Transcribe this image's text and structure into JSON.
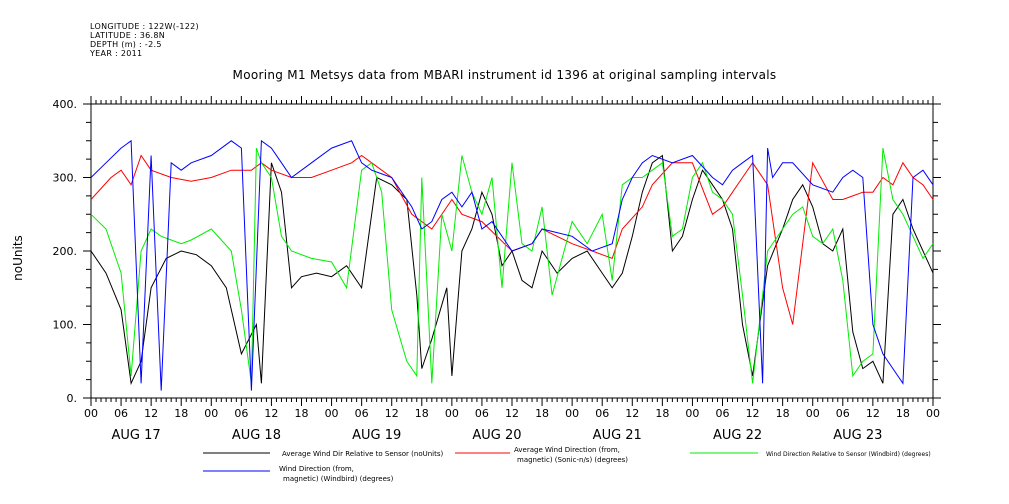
{
  "header": {
    "line1": "LONGITUDE : 122W(-122)",
    "line2": "LATITUDE : 36.8N",
    "line3": "DEPTH (m) : -2.5",
    "line4": "YEAR : 2011"
  },
  "chart_data": {
    "type": "line",
    "title": "Mooring M1 Metsys data from MBARI instrument id 1396 at original sampling intervals",
    "ylabel": "noUnits",
    "xlabel": "",
    "ylim": [
      0,
      400
    ],
    "y_ticks": [
      "0.",
      "100.",
      "200.",
      "300.",
      "400."
    ],
    "x_range_hours": [
      0,
      168
    ],
    "x_tick_labels": [
      "00",
      "06",
      "12",
      "18",
      "00",
      "06",
      "12",
      "18",
      "00",
      "06",
      "12",
      "18",
      "00",
      "06",
      "12",
      "18",
      "00",
      "06",
      "12",
      "18",
      "00",
      "06",
      "12",
      "18",
      "00",
      "06",
      "12",
      "18",
      "00"
    ],
    "date_labels": [
      "AUG 17",
      "AUG 18",
      "AUG 19",
      "AUG 20",
      "AUG 21",
      "AUG 22",
      "AUG 23"
    ],
    "grid": false,
    "legend_position": "bottom",
    "series": [
      {
        "name": "Average Wind Dir Relative to Sensor (noUnits)",
        "color": "#000000",
        "x": [
          0,
          3,
          6,
          8,
          10,
          12,
          15,
          18,
          21,
          24,
          27,
          30,
          33,
          34,
          36,
          38,
          40,
          42,
          45,
          48,
          51,
          54,
          57,
          60,
          63,
          65,
          66,
          68,
          71,
          72,
          74,
          76,
          78,
          80,
          82,
          84,
          86,
          88,
          90,
          93,
          96,
          99,
          102,
          104,
          106,
          108,
          110,
          112,
          114,
          116,
          118,
          120,
          122,
          124,
          126,
          128,
          130,
          132,
          135,
          138,
          139,
          140,
          142,
          144,
          146,
          148,
          150,
          152,
          154,
          156,
          158,
          160,
          162,
          164,
          166,
          168
        ],
        "values": [
          200,
          170,
          120,
          20,
          50,
          150,
          190,
          200,
          195,
          180,
          150,
          60,
          100,
          20,
          320,
          280,
          150,
          165,
          170,
          165,
          180,
          150,
          300,
          290,
          270,
          140,
          40,
          80,
          150,
          30,
          200,
          230,
          280,
          250,
          180,
          200,
          160,
          150,
          200,
          170,
          190,
          200,
          170,
          150,
          170,
          220,
          280,
          320,
          330,
          200,
          220,
          270,
          310,
          290,
          270,
          230,
          100,
          30,
          180,
          230,
          250,
          270,
          290,
          260,
          210,
          200,
          230,
          90,
          40,
          50,
          20,
          250,
          270,
          230,
          200,
          170
        ]
      },
      {
        "name": "Average Wind Direction (from, magnetic) (Sonic-n/s) (degrees)",
        "color": "#ff0000",
        "x": [
          0,
          4,
          6,
          8,
          10,
          12,
          16,
          20,
          24,
          28,
          32,
          34,
          36,
          40,
          44,
          48,
          52,
          54,
          56,
          60,
          64,
          66,
          68,
          72,
          74,
          78,
          84,
          88,
          90,
          96,
          100,
          104,
          106,
          110,
          112,
          116,
          120,
          124,
          126,
          128,
          130,
          132,
          135,
          138,
          140,
          144,
          148,
          150,
          152,
          154,
          156,
          158,
          160,
          162,
          164,
          166,
          168
        ],
        "values": [
          270,
          300,
          310,
          290,
          330,
          310,
          300,
          295,
          300,
          310,
          310,
          320,
          310,
          300,
          300,
          310,
          320,
          330,
          320,
          300,
          250,
          240,
          230,
          270,
          250,
          240,
          200,
          210,
          230,
          210,
          200,
          190,
          230,
          260,
          290,
          320,
          320,
          250,
          260,
          280,
          300,
          320,
          290,
          150,
          100,
          320,
          270,
          270,
          275,
          280,
          280,
          300,
          290,
          320,
          300,
          290,
          270
        ]
      },
      {
        "name": "Wind Direction Relative to Sensor (Windbird) (degrees)",
        "color": "#00ee00",
        "x": [
          0,
          3,
          6,
          8,
          10,
          12,
          14,
          16,
          18,
          20,
          24,
          28,
          30,
          32,
          33,
          34,
          36,
          38,
          40,
          44,
          48,
          51,
          54,
          56,
          58,
          60,
          63,
          65,
          66,
          68,
          70,
          72,
          74,
          76,
          78,
          80,
          82,
          84,
          86,
          88,
          90,
          92,
          96,
          99,
          102,
          104,
          106,
          108,
          110,
          112,
          114,
          116,
          118,
          120,
          122,
          124,
          126,
          128,
          130,
          132,
          135,
          138,
          140,
          142,
          144,
          146,
          148,
          150,
          152,
          154,
          156,
          158,
          160,
          162,
          164,
          166,
          168
        ],
        "values": [
          250,
          230,
          170,
          30,
          200,
          230,
          220,
          215,
          210,
          215,
          230,
          200,
          120,
          20,
          340,
          320,
          300,
          220,
          200,
          190,
          185,
          150,
          310,
          320,
          280,
          120,
          50,
          30,
          300,
          20,
          250,
          200,
          330,
          280,
          250,
          300,
          150,
          320,
          210,
          200,
          260,
          140,
          240,
          210,
          250,
          160,
          290,
          300,
          300,
          310,
          320,
          220,
          230,
          300,
          320,
          280,
          270,
          250,
          140,
          20,
          200,
          230,
          250,
          260,
          220,
          210,
          230,
          160,
          30,
          50,
          60,
          340,
          270,
          250,
          220,
          190,
          210
        ]
      },
      {
        "name": "Wind Direction (from, magnetic) (Windbird) (degrees)",
        "color": "#0000ff",
        "x": [
          0,
          3,
          6,
          8,
          10,
          12,
          14,
          16,
          18,
          20,
          24,
          28,
          30,
          32,
          34,
          36,
          38,
          40,
          44,
          48,
          52,
          54,
          56,
          60,
          64,
          66,
          68,
          70,
          72,
          74,
          76,
          78,
          80,
          84,
          88,
          90,
          96,
          100,
          104,
          106,
          108,
          110,
          112,
          116,
          120,
          124,
          126,
          128,
          130,
          132,
          134,
          135,
          136,
          138,
          140,
          144,
          148,
          150,
          152,
          154,
          156,
          158,
          160,
          162,
          164,
          166,
          168
        ],
        "values": [
          300,
          320,
          340,
          350,
          20,
          330,
          10,
          320,
          310,
          320,
          330,
          350,
          340,
          10,
          350,
          340,
          320,
          300,
          320,
          340,
          350,
          320,
          310,
          300,
          260,
          230,
          240,
          270,
          280,
          260,
          280,
          230,
          240,
          200,
          210,
          230,
          220,
          200,
          210,
          270,
          300,
          320,
          330,
          320,
          330,
          300,
          290,
          310,
          320,
          330,
          20,
          340,
          300,
          320,
          320,
          290,
          280,
          300,
          310,
          300,
          100,
          60,
          40,
          20,
          300,
          310,
          290
        ]
      }
    ]
  },
  "legend": {
    "black_label": "Average Wind Dir Relative to Sensor (noUnits)",
    "red_label_1": "Average Wind Direction (from,",
    "red_label_2": "magnetic) (Sonic-n/s) (degrees)",
    "green_label": "Wind Direction Relative to Sensor (Windbird) (degrees)",
    "blue_label_1": "Wind Direction (from,",
    "blue_label_2": "magnetic) (Windbird) (degrees)"
  }
}
